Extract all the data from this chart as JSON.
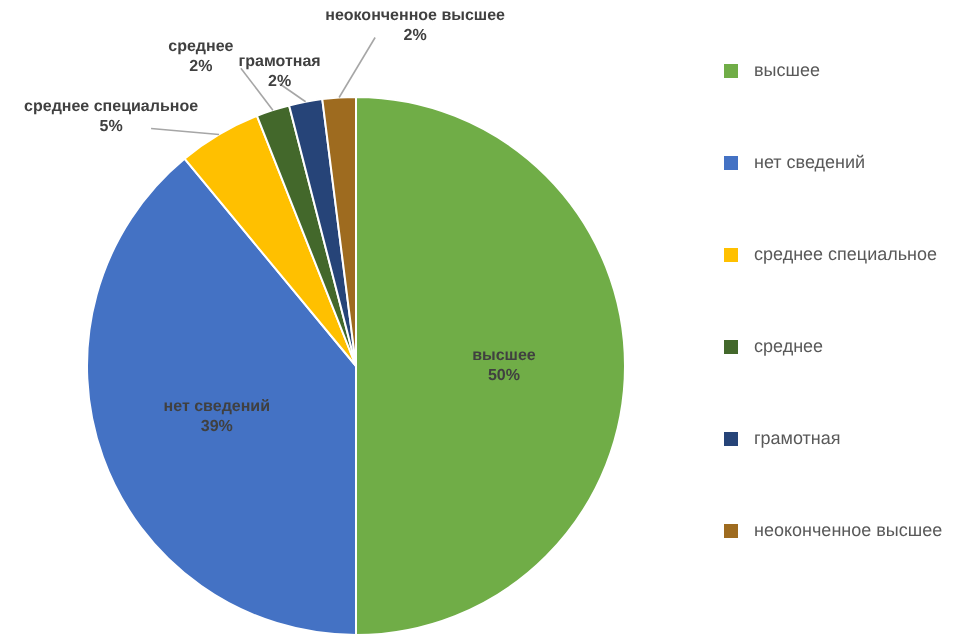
{
  "chart_data": {
    "type": "pie",
    "categories": [
      "высшее",
      "нет сведений",
      "среднее специальное",
      "среднее",
      "грамотная",
      "неоконченное высшее"
    ],
    "values": [
      50,
      39,
      5,
      2,
      2,
      2
    ],
    "colors": [
      "#70ad47",
      "#4472c4",
      "#ffc000",
      "#43682b",
      "#264478",
      "#9e6b1f"
    ],
    "value_labels": [
      "50%",
      "39%",
      "5%",
      "2%",
      "2%",
      "2%"
    ],
    "legend": "right"
  }
}
